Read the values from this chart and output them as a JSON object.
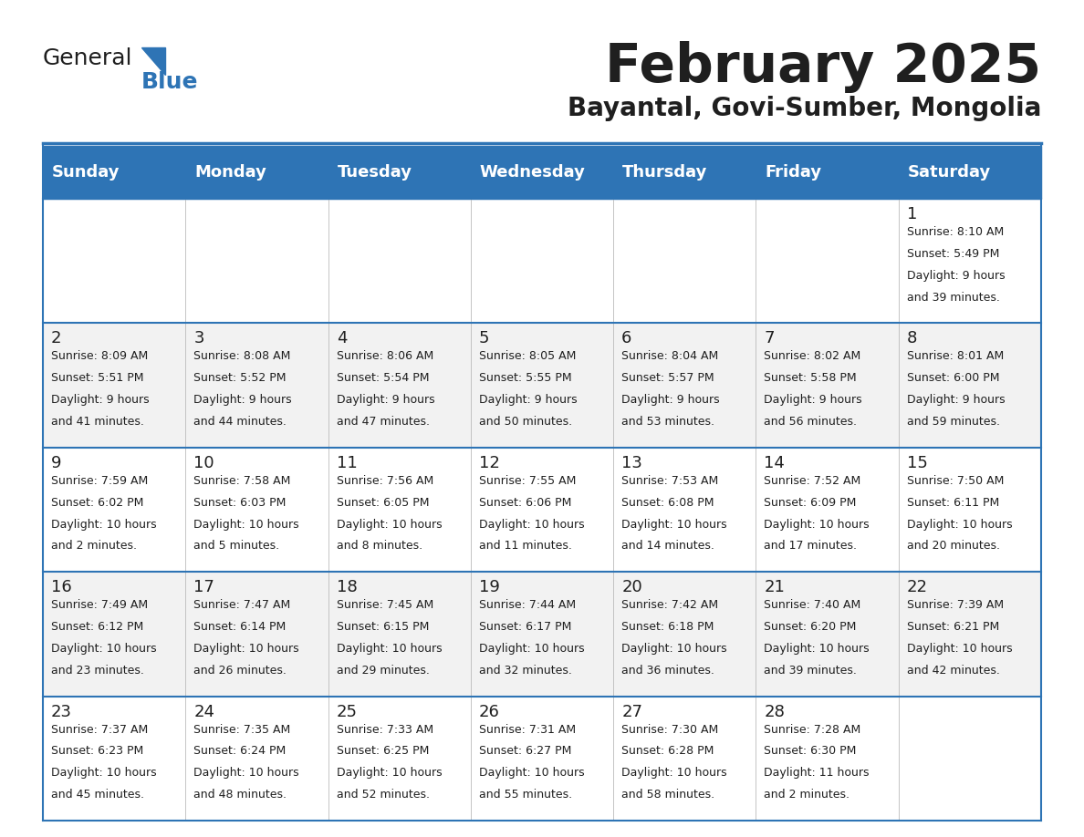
{
  "title": "February 2025",
  "subtitle": "Bayantal, Govi-Sumber, Mongolia",
  "header_bg": "#2E74B5",
  "header_text": "#FFFFFF",
  "row_bg_odd": "#FFFFFF",
  "row_bg_even": "#F2F2F2",
  "cell_border": "#2E74B5",
  "day_headers": [
    "Sunday",
    "Monday",
    "Tuesday",
    "Wednesday",
    "Thursday",
    "Friday",
    "Saturday"
  ],
  "title_color": "#1F1F1F",
  "subtitle_color": "#1F1F1F",
  "days": [
    {
      "date": 1,
      "col": 6,
      "row": 0,
      "sunrise": "8:10 AM",
      "sunset": "5:49 PM",
      "daylight": "9 hours and 39 minutes."
    },
    {
      "date": 2,
      "col": 0,
      "row": 1,
      "sunrise": "8:09 AM",
      "sunset": "5:51 PM",
      "daylight": "9 hours and 41 minutes."
    },
    {
      "date": 3,
      "col": 1,
      "row": 1,
      "sunrise": "8:08 AM",
      "sunset": "5:52 PM",
      "daylight": "9 hours and 44 minutes."
    },
    {
      "date": 4,
      "col": 2,
      "row": 1,
      "sunrise": "8:06 AM",
      "sunset": "5:54 PM",
      "daylight": "9 hours and 47 minutes."
    },
    {
      "date": 5,
      "col": 3,
      "row": 1,
      "sunrise": "8:05 AM",
      "sunset": "5:55 PM",
      "daylight": "9 hours and 50 minutes."
    },
    {
      "date": 6,
      "col": 4,
      "row": 1,
      "sunrise": "8:04 AM",
      "sunset": "5:57 PM",
      "daylight": "9 hours and 53 minutes."
    },
    {
      "date": 7,
      "col": 5,
      "row": 1,
      "sunrise": "8:02 AM",
      "sunset": "5:58 PM",
      "daylight": "9 hours and 56 minutes."
    },
    {
      "date": 8,
      "col": 6,
      "row": 1,
      "sunrise": "8:01 AM",
      "sunset": "6:00 PM",
      "daylight": "9 hours and 59 minutes."
    },
    {
      "date": 9,
      "col": 0,
      "row": 2,
      "sunrise": "7:59 AM",
      "sunset": "6:02 PM",
      "daylight": "10 hours and 2 minutes."
    },
    {
      "date": 10,
      "col": 1,
      "row": 2,
      "sunrise": "7:58 AM",
      "sunset": "6:03 PM",
      "daylight": "10 hours and 5 minutes."
    },
    {
      "date": 11,
      "col": 2,
      "row": 2,
      "sunrise": "7:56 AM",
      "sunset": "6:05 PM",
      "daylight": "10 hours and 8 minutes."
    },
    {
      "date": 12,
      "col": 3,
      "row": 2,
      "sunrise": "7:55 AM",
      "sunset": "6:06 PM",
      "daylight": "10 hours and 11 minutes."
    },
    {
      "date": 13,
      "col": 4,
      "row": 2,
      "sunrise": "7:53 AM",
      "sunset": "6:08 PM",
      "daylight": "10 hours and 14 minutes."
    },
    {
      "date": 14,
      "col": 5,
      "row": 2,
      "sunrise": "7:52 AM",
      "sunset": "6:09 PM",
      "daylight": "10 hours and 17 minutes."
    },
    {
      "date": 15,
      "col": 6,
      "row": 2,
      "sunrise": "7:50 AM",
      "sunset": "6:11 PM",
      "daylight": "10 hours and 20 minutes."
    },
    {
      "date": 16,
      "col": 0,
      "row": 3,
      "sunrise": "7:49 AM",
      "sunset": "6:12 PM",
      "daylight": "10 hours and 23 minutes."
    },
    {
      "date": 17,
      "col": 1,
      "row": 3,
      "sunrise": "7:47 AM",
      "sunset": "6:14 PM",
      "daylight": "10 hours and 26 minutes."
    },
    {
      "date": 18,
      "col": 2,
      "row": 3,
      "sunrise": "7:45 AM",
      "sunset": "6:15 PM",
      "daylight": "10 hours and 29 minutes."
    },
    {
      "date": 19,
      "col": 3,
      "row": 3,
      "sunrise": "7:44 AM",
      "sunset": "6:17 PM",
      "daylight": "10 hours and 32 minutes."
    },
    {
      "date": 20,
      "col": 4,
      "row": 3,
      "sunrise": "7:42 AM",
      "sunset": "6:18 PM",
      "daylight": "10 hours and 36 minutes."
    },
    {
      "date": 21,
      "col": 5,
      "row": 3,
      "sunrise": "7:40 AM",
      "sunset": "6:20 PM",
      "daylight": "10 hours and 39 minutes."
    },
    {
      "date": 22,
      "col": 6,
      "row": 3,
      "sunrise": "7:39 AM",
      "sunset": "6:21 PM",
      "daylight": "10 hours and 42 minutes."
    },
    {
      "date": 23,
      "col": 0,
      "row": 4,
      "sunrise": "7:37 AM",
      "sunset": "6:23 PM",
      "daylight": "10 hours and 45 minutes."
    },
    {
      "date": 24,
      "col": 1,
      "row": 4,
      "sunrise": "7:35 AM",
      "sunset": "6:24 PM",
      "daylight": "10 hours and 48 minutes."
    },
    {
      "date": 25,
      "col": 2,
      "row": 4,
      "sunrise": "7:33 AM",
      "sunset": "6:25 PM",
      "daylight": "10 hours and 52 minutes."
    },
    {
      "date": 26,
      "col": 3,
      "row": 4,
      "sunrise": "7:31 AM",
      "sunset": "6:27 PM",
      "daylight": "10 hours and 55 minutes."
    },
    {
      "date": 27,
      "col": 4,
      "row": 4,
      "sunrise": "7:30 AM",
      "sunset": "6:28 PM",
      "daylight": "10 hours and 58 minutes."
    },
    {
      "date": 28,
      "col": 5,
      "row": 4,
      "sunrise": "7:28 AM",
      "sunset": "6:30 PM",
      "daylight": "11 hours and 2 minutes."
    }
  ]
}
